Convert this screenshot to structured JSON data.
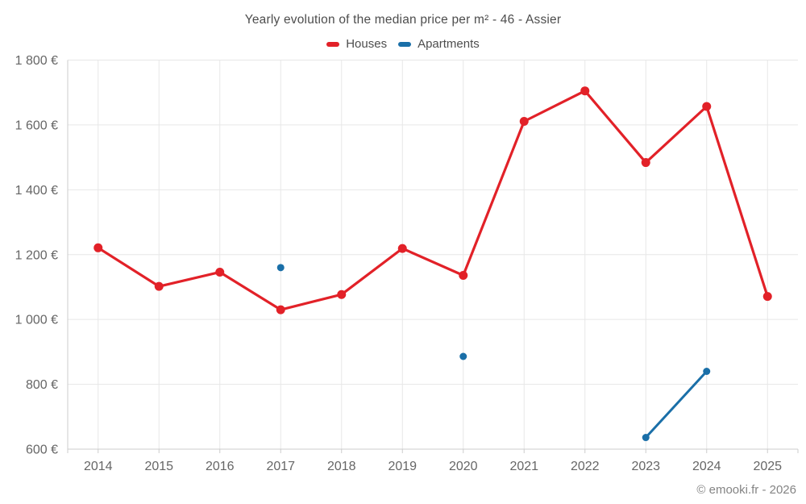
{
  "header": {
    "title": "Yearly evolution of the median price per m² - 46 - Assier"
  },
  "legend": {
    "items": [
      {
        "label": "Houses",
        "color": "#e22128"
      },
      {
        "label": "Apartments",
        "color": "#1a6fa8"
      }
    ]
  },
  "footer": {
    "credit": "© emooki.fr - 2026"
  },
  "chart_data": {
    "type": "line",
    "title": "Yearly evolution of the median price per m² - 46 - Assier",
    "categories": [
      "2014",
      "2015",
      "2016",
      "2017",
      "2018",
      "2019",
      "2020",
      "2021",
      "2022",
      "2023",
      "2024",
      "2025"
    ],
    "series": [
      {
        "name": "Houses",
        "color": "#e22128",
        "values": [
          1221,
          1102,
          1146,
          1030,
          1077,
          1219,
          1136,
          1611,
          1705,
          1484,
          1657,
          1071
        ]
      },
      {
        "name": "Apartments",
        "color": "#1a6fa8",
        "values": [
          null,
          null,
          null,
          1160,
          null,
          null,
          886,
          null,
          null,
          636,
          840,
          null
        ]
      }
    ],
    "xlabel": "",
    "ylabel": "",
    "ylim": [
      600,
      1800
    ],
    "ytick_step": 200,
    "ytick_suffix": " €",
    "ytick_labels": [
      "600 €",
      "800 €",
      "1 000 €",
      "1 200 €",
      "1 400 €",
      "1 600 €",
      "1 800 €"
    ],
    "grid": true,
    "legend_position": "top",
    "grid_color": "#e7e7e7",
    "axis_line_color": "#cccccc",
    "axis_text_color": "#666666"
  }
}
